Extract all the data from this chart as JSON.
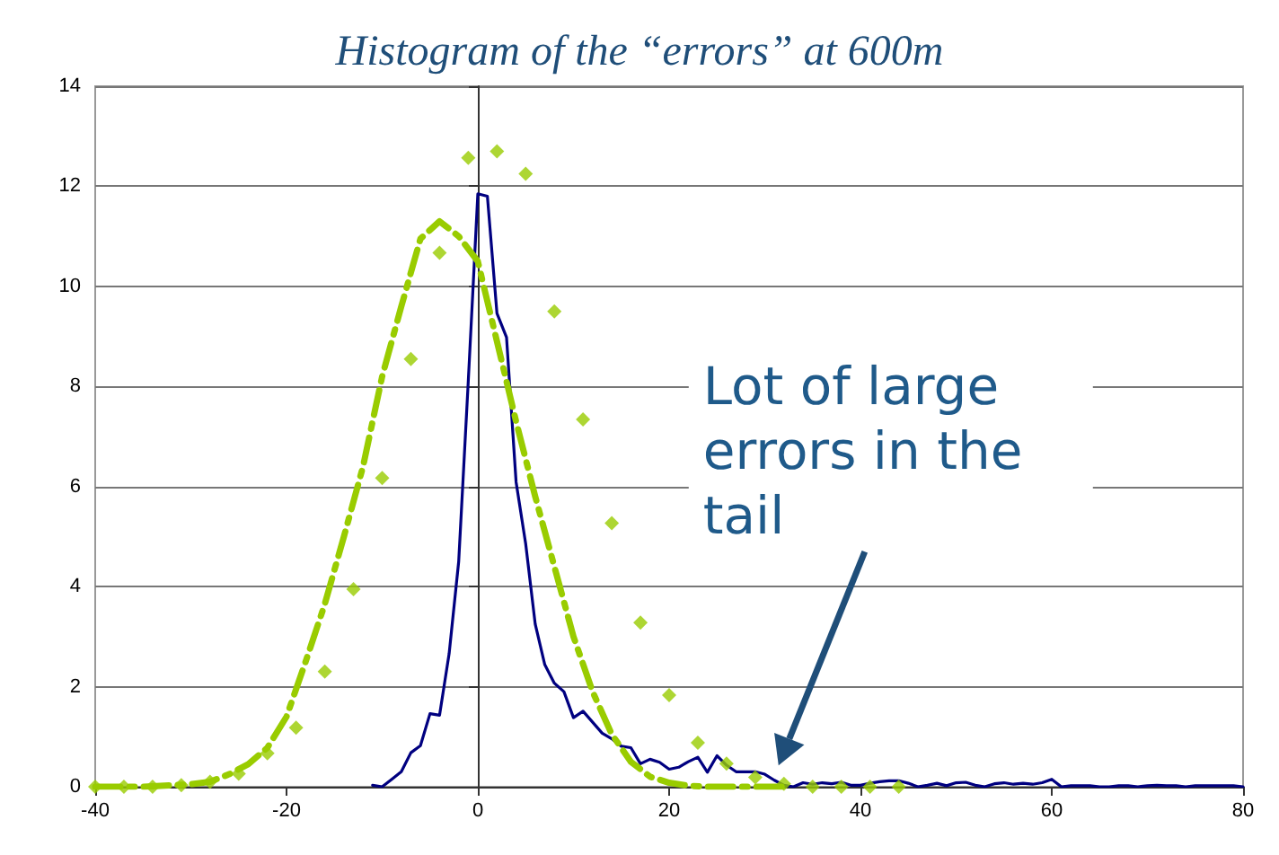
{
  "chart_data": {
    "type": "line",
    "title": "Histogram of the “errors” at 600m",
    "xlim": [
      -40,
      80
    ],
    "xticks": [
      -40,
      -20,
      0,
      20,
      40,
      60,
      80
    ],
    "ylim": [
      0,
      14
    ],
    "yticks": [
      0,
      2,
      4,
      6,
      8,
      10,
      12,
      14
    ],
    "grid": "y",
    "annotations": [
      "Lot of large errors in the tail"
    ],
    "series": [
      {
        "color": "#000080",
        "marker": "none",
        "line_style": "solid",
        "x": [
          -11,
          -10,
          -9,
          -8,
          -7,
          -6,
          -5,
          -4,
          -3,
          -2,
          -1,
          0,
          1,
          2,
          3,
          4,
          5,
          6,
          7,
          8,
          9,
          10,
          11,
          12,
          13,
          14,
          15,
          16,
          17,
          18,
          19,
          20,
          21,
          22,
          23,
          24,
          25,
          26,
          27,
          28,
          29,
          30,
          31,
          32,
          33,
          34,
          35,
          36,
          37,
          38,
          39,
          40,
          41,
          42,
          43,
          44,
          45,
          46,
          47,
          48,
          49,
          50,
          51,
          52,
          53,
          54,
          55,
          56,
          57,
          58,
          59,
          60,
          61,
          62,
          63,
          64,
          65,
          66,
          67,
          68,
          69,
          70,
          71,
          72,
          73,
          74,
          75,
          76,
          77,
          78,
          79,
          80
        ],
        "values": [
          0.03,
          0,
          0.15,
          0.3,
          0.68,
          0.82,
          1.46,
          1.43,
          2.66,
          4.5,
          8.1,
          11.85,
          11.8,
          9.46,
          8.98,
          6.09,
          4.86,
          3.25,
          2.44,
          2.07,
          1.9,
          1.38,
          1.51,
          1.29,
          1.07,
          0.96,
          0.81,
          0.78,
          0.46,
          0.55,
          0.49,
          0.35,
          0.39,
          0.5,
          0.59,
          0.29,
          0.62,
          0.43,
          0.3,
          0.3,
          0.3,
          0.25,
          0.13,
          0.03,
          0,
          0.08,
          0.05,
          0.08,
          0.06,
          0.09,
          0.03,
          0.03,
          0.07,
          0.1,
          0.12,
          0.12,
          0.07,
          0,
          0.03,
          0.07,
          0.02,
          0.08,
          0.09,
          0.03,
          0,
          0.06,
          0.08,
          0.05,
          0.07,
          0.05,
          0.08,
          0.15,
          0,
          0.02,
          0.02,
          0.02,
          0,
          0,
          0.02,
          0.02,
          0,
          0.02,
          0.03,
          0.02,
          0.02,
          0,
          0.02,
          0.02,
          0.02,
          0.02,
          0.02,
          0
        ]
      },
      {
        "type": "scatter",
        "color": "#99cc00",
        "marker": "diamond",
        "x": [
          -40,
          -37,
          -34,
          -31,
          -28,
          -25,
          -22,
          -19,
          -16,
          -13,
          -10,
          -7,
          -4,
          -1,
          2,
          5,
          8,
          11,
          14,
          17,
          20,
          23,
          26,
          29,
          32,
          35,
          38,
          41,
          44
        ],
        "values": [
          0,
          0,
          0,
          0.03,
          0.1,
          0.26,
          0.67,
          1.18,
          2.3,
          3.95,
          6.17,
          8.55,
          10.67,
          12.57,
          12.7,
          12.25,
          9.5,
          7.34,
          5.27,
          3.28,
          1.83,
          0.88,
          0.46,
          0.19,
          0.06,
          0,
          0,
          0,
          0
        ]
      },
      {
        "color": "#99cc00",
        "marker": "none",
        "line_style": "dashed",
        "x": [
          -40,
          -35,
          -30,
          -28,
          -26,
          -24,
          -22,
          -20,
          -18,
          -16,
          -14,
          -12,
          -10,
          -8,
          -6,
          -4,
          -2,
          0,
          2,
          4,
          6,
          8,
          10,
          12,
          14,
          16,
          18,
          20,
          22,
          24,
          28,
          32
        ],
        "values": [
          0,
          0,
          0.05,
          0.1,
          0.25,
          0.45,
          0.78,
          1.4,
          2.5,
          3.65,
          5.0,
          6.4,
          8.2,
          9.6,
          10.95,
          11.3,
          11.0,
          10.5,
          8.9,
          7.3,
          5.8,
          4.4,
          3.0,
          1.9,
          1.05,
          0.5,
          0.2,
          0.08,
          0.02,
          0,
          0,
          0
        ]
      }
    ]
  }
}
